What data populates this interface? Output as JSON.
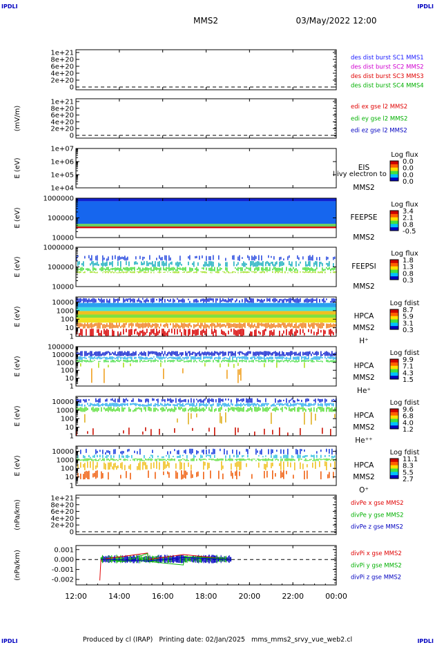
{
  "header": {
    "corner_labels": [
      "IPDLI",
      "IPDLI",
      "IPDLI",
      "IPDLI"
    ],
    "spacecraft": "MMS2",
    "date_time": "03/May/2022 12:00"
  },
  "footer": {
    "text": "Produced by cl (IRAP)   Printing date: 02/Jan/2025   mms_mms2_srvy_vue_web2.cl"
  },
  "x_axis": {
    "ticks": [
      "12:00",
      "14:00",
      "16:00",
      "18:00",
      "20:00",
      "22:00",
      "00:00"
    ],
    "tick_hours": [
      12,
      14,
      16,
      18,
      20,
      22,
      24
    ],
    "range_hours": [
      12,
      24
    ]
  },
  "colors": {
    "mms1": "#1a1aff",
    "mms2": "#d000d0",
    "mms3": "#e00000",
    "mms4": "#00b000",
    "x": "#e00000",
    "y": "#00b000",
    "z": "#0000c0"
  },
  "chart_data": [
    {
      "id": "des-dist",
      "type": "line",
      "ylabel": "",
      "yticks": [
        "1e+21",
        "8e+20",
        "6e+20",
        "4e+20",
        "2e+20",
        "0"
      ],
      "ylim": [
        0,
        1e+21
      ],
      "dashed_zero": true,
      "legend": [
        {
          "text": "des dist burst SC1 MMS1",
          "color": "#1a1aff"
        },
        {
          "text": "des dist burst SC2 MMS2",
          "color": "#d000d0"
        },
        {
          "text": "des dist burst SC3 MMS3",
          "color": "#e00000"
        },
        {
          "text": "des dist burst SC4 MMS4",
          "color": "#00b000"
        }
      ]
    },
    {
      "id": "edi",
      "type": "line",
      "ylabel": "(mV/m)",
      "yticks": [
        "1e+21",
        "8e+20",
        "6e+20",
        "4e+20",
        "2e+20",
        "0"
      ],
      "ylim": [
        0,
        1e+21
      ],
      "dashed_zero": true,
      "legend": [
        {
          "text": "edi ex gse l2 MMS2",
          "color": "#e00000"
        },
        {
          "text": "edi ey gse l2 MMS2",
          "color": "#00b000"
        },
        {
          "text": "edi ez gse l2 MMS2",
          "color": "#0000c0"
        }
      ]
    },
    {
      "id": "eis",
      "type": "heatmap",
      "ylabel": "E (eV)",
      "yticks": [
        "1e+07",
        "1e+06",
        "1e+05",
        "1e+04"
      ],
      "ylim": [
        10000,
        10000000
      ],
      "scale": "log",
      "labels": [
        "EIS",
        "MMS2"
      ],
      "overlay_text": "l ivy electron to",
      "colorbar_title": "Log flux",
      "colorbar_ticks": [
        "0.0",
        "0.0",
        "0.0",
        "0.0"
      ],
      "data_interval_hours": []
    },
    {
      "id": "feeps-e",
      "type": "heatmap",
      "ylabel": "E (eV)",
      "yticks": [
        "1000000",
        "100000",
        "10000"
      ],
      "ylim": [
        10000,
        1000000
      ],
      "scale": "log",
      "labels": [
        "FEEPSE",
        "MMS2"
      ],
      "colorbar_title": "Log flux",
      "colorbar_ticks": [
        "3.4",
        "2.1",
        "0.8",
        "-0.5"
      ],
      "data_interval_hours": [
        12,
        24
      ],
      "bands": [
        {
          "from_ev": 700000,
          "to_ev": 1000000,
          "color": "#1020d0"
        },
        {
          "from_ev": 50000,
          "to_ev": 700000,
          "color": "#1666ee"
        },
        {
          "from_ev": 36000,
          "to_ev": 50000,
          "color": "#6ad060"
        },
        {
          "from_ev": 30000,
          "to_ev": 36000,
          "color": "#cc0000"
        }
      ]
    },
    {
      "id": "feeps-i",
      "type": "heatmap",
      "ylabel": "E (eV)",
      "yticks": [
        "1000000",
        "100000",
        "10000"
      ],
      "ylim": [
        10000,
        1000000
      ],
      "scale": "log",
      "labels": [
        "FEEPSI",
        "MMS2"
      ],
      "colorbar_title": "Log flux",
      "colorbar_ticks": [
        "1.8",
        "1.3",
        "0.8",
        "0.3"
      ],
      "data_interval_hours": [
        12,
        24
      ],
      "bands": [
        {
          "from_ev": 200000,
          "to_ev": 400000,
          "color": "#3050e0",
          "density": 0.45
        },
        {
          "from_ev": 100000,
          "to_ev": 200000,
          "color": "#20b0c0",
          "density": 0.6
        },
        {
          "from_ev": 60000,
          "to_ev": 100000,
          "color": "#50e040",
          "density": 0.8
        },
        {
          "from_ev": 48000,
          "to_ev": 60000,
          "color": "#a0e020",
          "density": 0.7
        }
      ]
    },
    {
      "id": "hpca-h",
      "type": "heatmap",
      "ylabel": "E (eV)",
      "yticks": [
        "10000",
        "1000",
        "100",
        "10",
        "1"
      ],
      "ylim": [
        1,
        40000
      ],
      "scale": "log",
      "labels": [
        "HPCA",
        "MMS2",
        "H⁺"
      ],
      "colorbar_title": "Log fdist",
      "colorbar_ticks": [
        "8.7",
        "5.9",
        "3.1",
        "0.3"
      ],
      "data_interval_hours": [
        12,
        24
      ],
      "bands": [
        {
          "from_ev": 8000,
          "to_ev": 30000,
          "color": "#1a2ed8",
          "density": 0.8
        },
        {
          "from_ev": 2500,
          "to_ev": 8000,
          "color": "#2aa0f0",
          "density": 1
        },
        {
          "from_ev": 900,
          "to_ev": 2500,
          "color": "#40e0e0",
          "density": 1
        },
        {
          "from_ev": 350,
          "to_ev": 900,
          "color": "#f0c020",
          "density": 1
        },
        {
          "from_ev": 150,
          "to_ev": 350,
          "color": "#80e040",
          "density": 1
        },
        {
          "from_ev": 40,
          "to_ev": 150,
          "color": "#f0e020",
          "density": 1
        },
        {
          "from_ev": 8,
          "to_ev": 40,
          "color": "#f08020",
          "density": 0.95
        },
        {
          "from_ev": 1,
          "to_ev": 8,
          "color": "#d80000",
          "density": 0.7
        }
      ]
    },
    {
      "id": "hpca-he",
      "type": "heatmap",
      "ylabel": "E (eV)",
      "yticks": [
        "100000",
        "10000",
        "1000",
        "100",
        "10",
        "1"
      ],
      "ylim": [
        1,
        100000
      ],
      "scale": "log",
      "labels": [
        "HPCA",
        "MMS2",
        "He⁺"
      ],
      "colorbar_title": "Log fdist",
      "colorbar_ticks": [
        "9.9",
        "7.1",
        "4.3",
        "1.5"
      ],
      "data_interval_hours": [
        12,
        24
      ],
      "bands": [
        {
          "from_ev": 6000,
          "to_ev": 28000,
          "color": "#1528d0",
          "density": 0.95
        },
        {
          "from_ev": 2200,
          "to_ev": 6000,
          "color": "#30b0f0",
          "density": 0.9
        },
        {
          "from_ev": 1000,
          "to_ev": 2200,
          "color": "#50e050",
          "density": 0.85
        },
        {
          "from_ev": 200,
          "to_ev": 1000,
          "color": "#b0e020",
          "density": 0.08
        },
        {
          "from_ev": 2,
          "to_ev": 200,
          "color": "#f0a020",
          "density": 0.04
        }
      ]
    },
    {
      "id": "hpca-he2",
      "type": "heatmap",
      "ylabel": "E (eV)",
      "yticks": [
        "10000",
        "1000",
        "100",
        "10",
        "1"
      ],
      "ylim": [
        1,
        40000
      ],
      "scale": "log",
      "labels": [
        "HPCA",
        "MMS2",
        "He⁺⁺"
      ],
      "colorbar_title": "Log fdist",
      "colorbar_ticks": [
        "9.6",
        "6.8",
        "4.0",
        "1.2"
      ],
      "data_interval_hours": [
        12,
        24
      ],
      "bands": [
        {
          "from_ev": 7000,
          "to_ev": 25000,
          "color": "#1a30d8",
          "density": 0.7
        },
        {
          "from_ev": 2500,
          "to_ev": 7000,
          "color": "#30b0f0",
          "density": 0.95
        },
        {
          "from_ev": 600,
          "to_ev": 2500,
          "color": "#60e040",
          "density": 0.85
        },
        {
          "from_ev": 20,
          "to_ev": 600,
          "color": "#e0b020",
          "density": 0.05
        },
        {
          "from_ev": 1,
          "to_ev": 10,
          "color": "#cc1000",
          "density": 0.12
        }
      ]
    },
    {
      "id": "hpca-o",
      "type": "heatmap",
      "ylabel": "E (eV)",
      "yticks": [
        "10000",
        "1000",
        "100",
        "10",
        "1"
      ],
      "ylim": [
        1,
        40000
      ],
      "scale": "log",
      "labels": [
        "HPCA",
        "MMS2",
        "O⁺"
      ],
      "colorbar_title": "Log fdist",
      "colorbar_ticks": [
        "11.1",
        "8.3",
        "5.5",
        "2.7"
      ],
      "data_interval_hours": [
        12,
        24
      ],
      "bands": [
        {
          "from_ev": 4000,
          "to_ev": 20000,
          "color": "#1a40e0",
          "density": 0.35
        },
        {
          "from_ev": 1500,
          "to_ev": 4000,
          "color": "#30c0e0",
          "density": 0.5
        },
        {
          "from_ev": 700,
          "to_ev": 1500,
          "color": "#60e040",
          "density": 0.9
        },
        {
          "from_ev": 60,
          "to_ev": 700,
          "color": "#f0c020",
          "density": 0.45
        },
        {
          "from_ev": 5,
          "to_ev": 60,
          "color": "#f06010",
          "density": 0.3
        }
      ]
    },
    {
      "id": "divpe",
      "type": "line",
      "ylabel": "(nPa/km)",
      "yticks": [
        "1e+21",
        "8e+20",
        "6e+20",
        "4e+20",
        "2e+20",
        "0"
      ],
      "ylim": [
        0,
        1e+21
      ],
      "dashed_zero": true,
      "legend": [
        {
          "text": "divPe x gse MMS2",
          "color": "#e00000"
        },
        {
          "text": "divPe y gse MMS2",
          "color": "#00b000"
        },
        {
          "text": "divPe z gse MMS2",
          "color": "#0000c0"
        }
      ]
    },
    {
      "id": "divpi",
      "type": "line",
      "ylabel": "(nPa/km)",
      "yticks": [
        "0.001",
        "0.000",
        "-0.001",
        "-0.002"
      ],
      "ytick_values": [
        0.001,
        0,
        -0.001,
        -0.002
      ],
      "ylim": [
        -0.00255,
        0.0014
      ],
      "dashed_zero": true,
      "data_interval_hours": [
        13.15,
        19.15
      ],
      "legend": [
        {
          "text": "divPi x gse MMS2",
          "color": "#e00000"
        },
        {
          "text": "divPi y gse MMS2",
          "color": "#00b000"
        },
        {
          "text": "divPi z gse MMS2",
          "color": "#0000c0"
        }
      ],
      "series": [
        {
          "name": "divPi x gse MMS2",
          "color": "#e00000",
          "x": [
            13.1,
            13.15,
            13.2,
            15.3,
            15.35,
            16.95,
            19.1
          ],
          "y": [
            -0.0021,
            -5e-05,
            2e-05,
            0.00065,
            1e-05,
            0.0005,
            2e-05
          ]
        },
        {
          "name": "divPi y gse MMS2",
          "color": "#00b000",
          "x": [
            13.15,
            14.2,
            15.3,
            15.35,
            16.95,
            17.0,
            18.7,
            19.15
          ],
          "y": [
            0.0001,
            -0.00022,
            0.0006,
            -0.0002,
            -0.00055,
            0.0003,
            0.00012,
            0.0
          ]
        },
        {
          "name": "divPi z gse MMS2",
          "color": "#0000c0",
          "x": [
            13.15,
            15.3,
            16.95,
            19.15
          ],
          "y": [
            3e-05,
            -0.00015,
            0.0002,
            0.0
          ]
        }
      ]
    }
  ]
}
